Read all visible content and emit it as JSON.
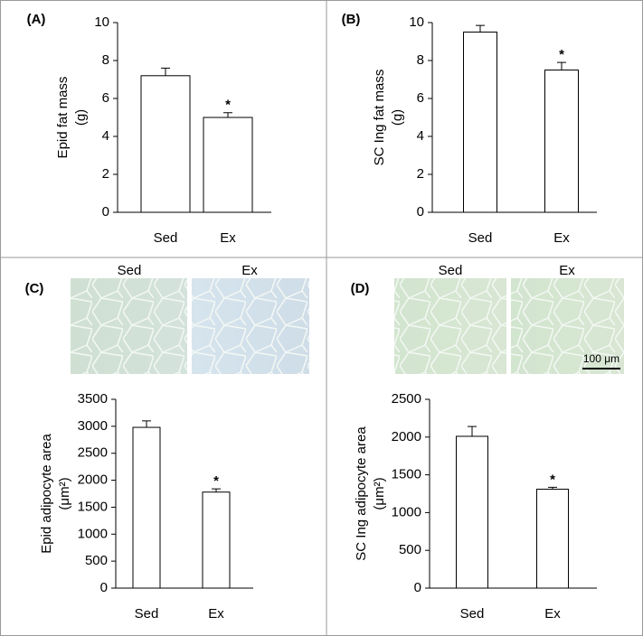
{
  "chart_data": [
    {
      "type": "bar",
      "panel": "(A)",
      "ylabel": [
        "Epid fat mass",
        "(g)"
      ],
      "categories": [
        "Sed",
        "Ex"
      ],
      "values": [
        7.2,
        5.0
      ],
      "errors": [
        0.4,
        0.25
      ],
      "value_annotations": [
        null,
        "*"
      ],
      "color": "#ffffff",
      "ylim": [
        0,
        10
      ],
      "yticks": [
        0,
        2,
        4,
        6,
        8,
        10
      ]
    },
    {
      "type": "bar",
      "panel": "(B)",
      "ylabel": [
        "SC Ing fat mass",
        "(g)"
      ],
      "categories": [
        "Sed",
        "Ex"
      ],
      "values": [
        9.5,
        7.5
      ],
      "errors": [
        0.35,
        0.4
      ],
      "value_annotations": [
        null,
        "*"
      ],
      "color": "#ffffff",
      "ylim": [
        0,
        10
      ],
      "yticks": [
        0,
        2,
        4,
        6,
        8,
        10
      ]
    },
    {
      "type": "bar",
      "panel": "(C)",
      "image_labels": [
        "Sed",
        "Ex"
      ],
      "ylabel": [
        "Epid adipocyte area",
        "(μm²)"
      ],
      "categories": [
        "Sed",
        "Ex"
      ],
      "values": [
        2980,
        1780
      ],
      "errors": [
        120,
        60
      ],
      "value_annotations": [
        null,
        "*"
      ],
      "color": "#ffffff",
      "ylim": [
        0,
        3500
      ],
      "yticks": [
        0,
        500,
        1000,
        1500,
        2000,
        2500,
        3000,
        3500
      ]
    },
    {
      "type": "bar",
      "panel": "(D)",
      "image_labels": [
        "Sed",
        "Ex"
      ],
      "scale_bar": "100 μm",
      "ylabel": [
        "SC Ing adipocyte area",
        "(μm²)"
      ],
      "categories": [
        "Sed",
        "Ex"
      ],
      "values": [
        2010,
        1310
      ],
      "errors": [
        130,
        25
      ],
      "value_annotations": [
        null,
        "*"
      ],
      "color": "#ffffff",
      "ylim": [
        0,
        2500
      ],
      "yticks": [
        0,
        500,
        1000,
        1500,
        2000,
        2500
      ]
    }
  ]
}
